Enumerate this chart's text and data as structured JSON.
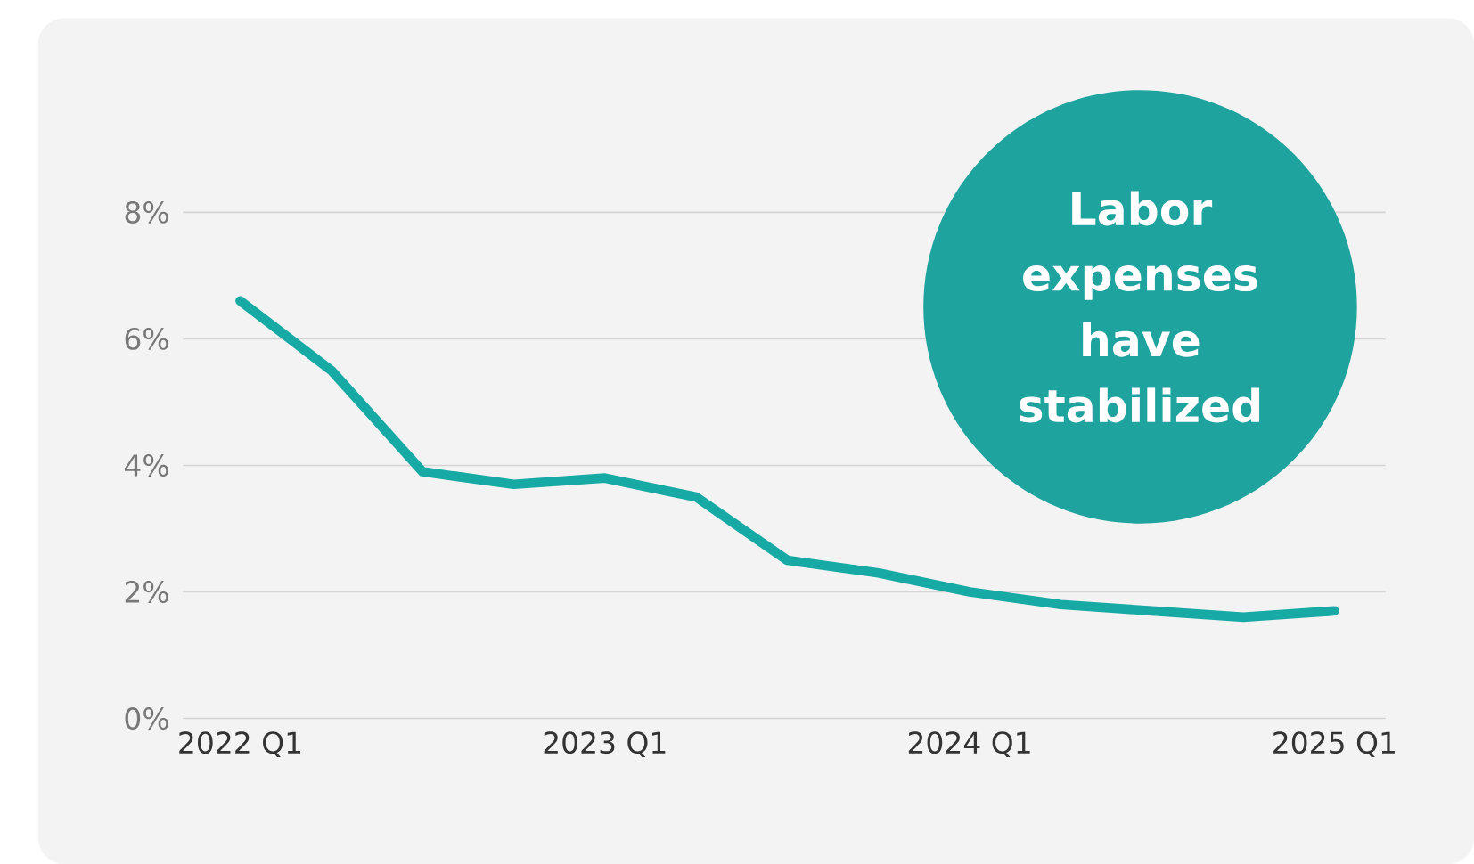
{
  "chart_data": {
    "type": "line",
    "categories": [
      "2022 Q1",
      null,
      null,
      null,
      "2023 Q1",
      null,
      null,
      null,
      "2024 Q1",
      null,
      null,
      null,
      "2025 Q1"
    ],
    "values": [
      6.6,
      5.5,
      3.9,
      3.7,
      3.8,
      3.5,
      2.5,
      2.3,
      2.0,
      1.8,
      1.7,
      1.6,
      1.7
    ],
    "color": "#17aaa5",
    "ylim": [
      0,
      8
    ],
    "yticks": [
      {
        "value": 0,
        "label": "0%"
      },
      {
        "value": 2,
        "label": "2%"
      },
      {
        "value": 4,
        "label": "4%"
      },
      {
        "value": 6,
        "label": "6%"
      },
      {
        "value": 8,
        "label": "8%"
      }
    ],
    "grid": "y",
    "marker": "none",
    "line_style": "solid",
    "annotations": [
      "Labor expenses have stabilized"
    ]
  }
}
